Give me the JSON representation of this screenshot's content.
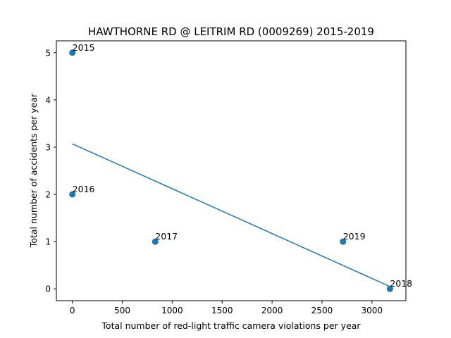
{
  "chart_data": {
    "type": "scatter",
    "title": "HAWTHORNE RD @ LEITRIM RD (0009269) 2015-2019",
    "xlabel": "Total number of red-light traffic camera violations per year",
    "ylabel": "Total number of accidents per year",
    "xlim": [
      -160,
      3340
    ],
    "ylim": [
      -0.25,
      5.25
    ],
    "xticks": [
      0,
      500,
      1000,
      1500,
      2000,
      2500,
      3000
    ],
    "yticks": [
      0,
      1,
      2,
      3,
      4,
      5
    ],
    "grid": false,
    "legend": "none",
    "points": [
      {
        "x": 0,
        "y": 5,
        "label": "2015"
      },
      {
        "x": 0,
        "y": 2,
        "label": "2016"
      },
      {
        "x": 830,
        "y": 1,
        "label": "2017"
      },
      {
        "x": 3180,
        "y": 0,
        "label": "2018"
      },
      {
        "x": 2710,
        "y": 1,
        "label": "2019"
      }
    ],
    "trendline": {
      "x": [
        0,
        3180
      ],
      "y": [
        3.07,
        0.05
      ]
    },
    "colors": {
      "points": "#1f77b4",
      "trendline": "#1f77b4"
    }
  }
}
